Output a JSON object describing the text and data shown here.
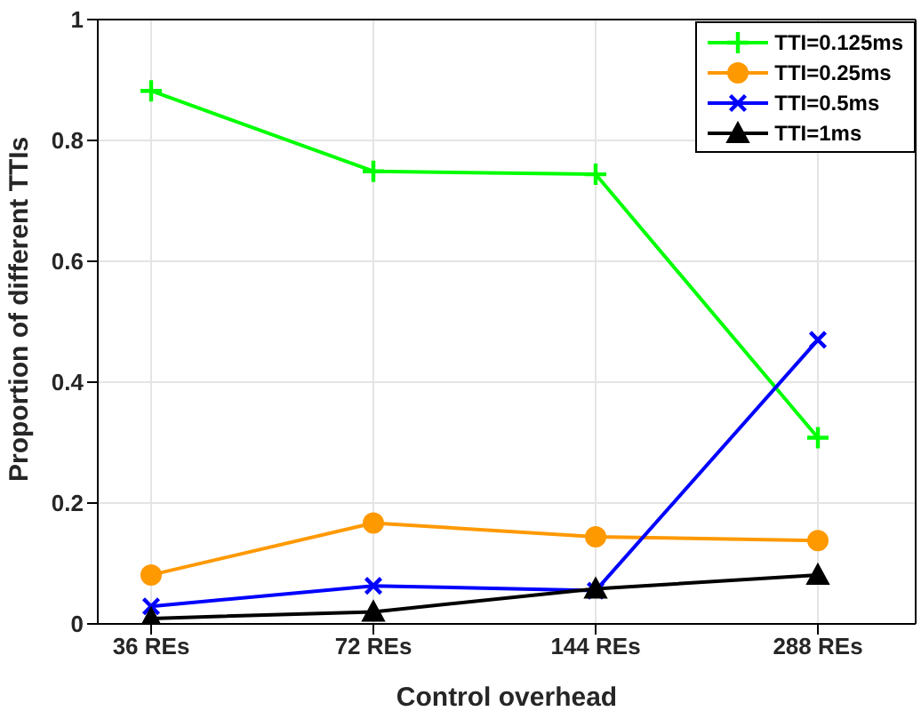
{
  "chart_data": {
    "type": "line",
    "xlabel": "Control overhead",
    "ylabel": "Proportion of different TTIs",
    "categories": [
      "36 REs",
      "72 REs",
      "144 REs",
      "288 REs"
    ],
    "series": [
      {
        "name": "TTI=0.125ms",
        "color": "#00ff00",
        "marker": "cross",
        "values": [
          0.882,
          0.749,
          0.744,
          0.308
        ]
      },
      {
        "name": "TTI=0.25ms",
        "color": "#ff9900",
        "marker": "circle",
        "values": [
          0.081,
          0.167,
          0.144,
          0.138
        ]
      },
      {
        "name": "TTI=0.5ms",
        "color": "#0000ff",
        "marker": "cross",
        "values": [
          0.029,
          0.063,
          0.055,
          0.47
        ]
      },
      {
        "name": "TTI=1ms",
        "color": "#000000",
        "marker": "triangle",
        "values": [
          0.009,
          0.02,
          0.058,
          0.081
        ]
      }
    ],
    "ylim": [
      0,
      1
    ],
    "yticks": [
      0,
      0.2,
      0.4,
      0.6,
      0.8,
      1
    ],
    "grid": true,
    "legend": "top right",
    "line_style": "solid"
  }
}
